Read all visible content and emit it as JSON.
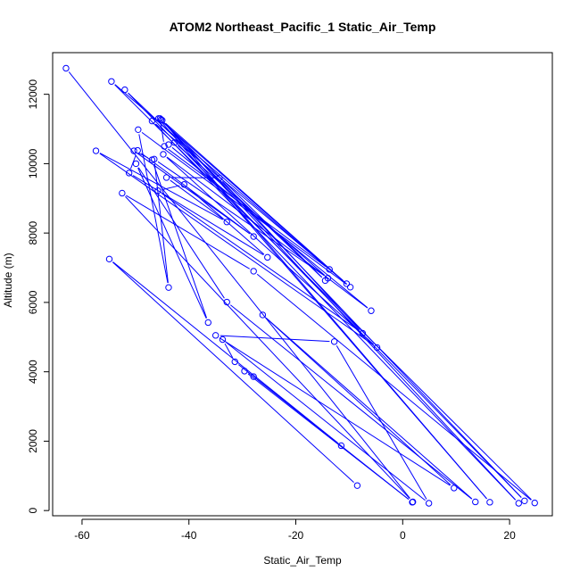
{
  "chart_data": {
    "type": "scatter",
    "mode": "lines+points",
    "title": "ATOM2 Northeast_Pacific_1 Static_Air_Temp",
    "xlabel": "Static_Air_Temp",
    "ylabel": "Altitude (m)",
    "xlim": [
      -65.5,
      28.0
    ],
    "ylim": [
      -150,
      13200
    ],
    "xticks": [
      -60,
      -40,
      -20,
      0,
      20
    ],
    "yticks": [
      0,
      2000,
      4000,
      6000,
      8000,
      10000,
      12000
    ],
    "grid": false,
    "legend": "none",
    "colors": {
      "series": "#0000ff",
      "axis": "#000000",
      "background": "#ffffff"
    },
    "series": [
      {
        "points": [
          {
            "x": -63.0,
            "y": 12750
          },
          {
            "x": 1.9,
            "y": 250
          },
          {
            "x": -52.5,
            "y": 9150
          },
          {
            "x": -27.9,
            "y": 6900
          },
          {
            "x": 24.7,
            "y": 220
          },
          {
            "x": -54.5,
            "y": 12370
          },
          {
            "x": -13.7,
            "y": 6950
          },
          {
            "x": -44.6,
            "y": 10500
          },
          {
            "x": -45.4,
            "y": 11300
          },
          {
            "x": 22.8,
            "y": 280
          },
          {
            "x": -52.0,
            "y": 12130
          },
          {
            "x": -14.5,
            "y": 6630
          },
          {
            "x": -45.2,
            "y": 11270
          },
          {
            "x": 21.7,
            "y": 210
          },
          {
            "x": -46.9,
            "y": 11230
          },
          {
            "x": -10.5,
            "y": 6540
          },
          {
            "x": -45.0,
            "y": 11250
          },
          {
            "x": 16.3,
            "y": 240
          },
          {
            "x": -45.7,
            "y": 11300
          },
          {
            "x": -9.8,
            "y": 6440
          },
          {
            "x": -49.5,
            "y": 10980
          },
          {
            "x": -43.8,
            "y": 6430
          },
          {
            "x": -46.5,
            "y": 10130
          },
          {
            "x": -14.0,
            "y": 6700
          },
          {
            "x": -42.7,
            "y": 10610
          },
          {
            "x": -43.8,
            "y": 10550
          },
          {
            "x": -5.9,
            "y": 5760
          },
          {
            "x": -44.8,
            "y": 10270
          },
          {
            "x": -4.8,
            "y": 4700
          },
          {
            "x": -57.4,
            "y": 10370
          },
          {
            "x": -32.9,
            "y": 8320
          },
          {
            "x": -44.2,
            "y": 9600
          },
          {
            "x": -34.3,
            "y": 9590
          },
          {
            "x": -7.5,
            "y": 5110
          },
          {
            "x": -45.8,
            "y": 9220
          },
          {
            "x": -40.9,
            "y": 9400
          },
          {
            "x": -25.3,
            "y": 7300
          },
          {
            "x": -51.2,
            "y": 9730
          },
          {
            "x": -49.6,
            "y": 10380
          },
          {
            "x": -27.9,
            "y": 7900
          },
          {
            "x": -50.3,
            "y": 10370
          },
          {
            "x": -46.9,
            "y": 10110
          },
          {
            "x": -36.4,
            "y": 5420
          },
          {
            "x": -49.9,
            "y": 10000
          },
          {
            "x": -32.9,
            "y": 6010
          },
          {
            "x": 13.6,
            "y": 250
          },
          {
            "x": -26.2,
            "y": 5640
          },
          {
            "x": 9.6,
            "y": 650
          },
          {
            "x": -35.0,
            "y": 5050
          },
          {
            "x": -12.8,
            "y": 4870
          },
          {
            "x": 4.9,
            "y": 210
          },
          {
            "x": -33.7,
            "y": 4930
          },
          {
            "x": -31.4,
            "y": 4290
          },
          {
            "x": 1.8,
            "y": 240
          },
          {
            "x": -29.6,
            "y": 4020
          },
          {
            "x": -27.9,
            "y": 3860
          },
          {
            "x": -11.5,
            "y": 1870
          },
          {
            "x": -54.9,
            "y": 7250
          },
          {
            "x": -8.5,
            "y": 720
          }
        ]
      }
    ]
  }
}
